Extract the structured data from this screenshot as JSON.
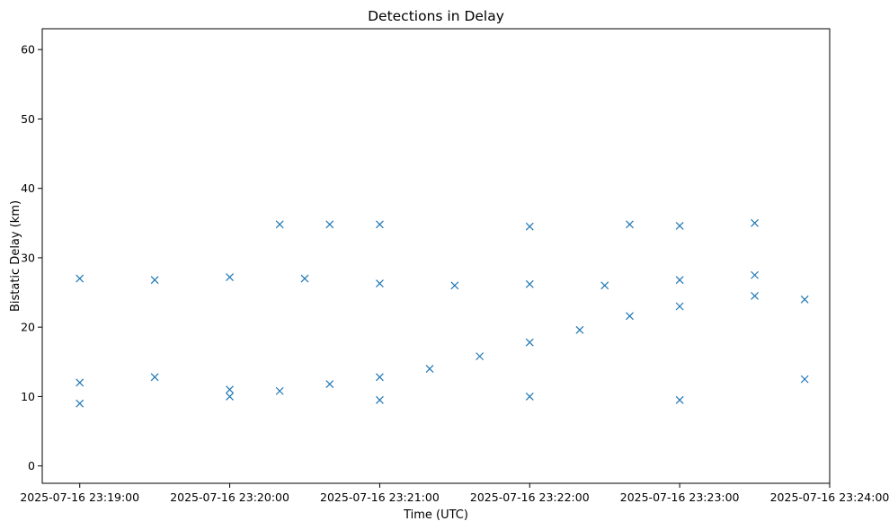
{
  "chart_data": {
    "type": "scatter",
    "title": "Detections in Delay",
    "xlabel": "Time (UTC)",
    "ylabel": "Bistatic Delay (km)",
    "marker": "x",
    "color": "#1f77b4",
    "grid": false,
    "legend": "none",
    "x_range": [
      "2025-07-16 23:18:45",
      "2025-07-16 23:24:00"
    ],
    "ylim": [
      -2.5,
      63
    ],
    "x_ticks": [
      "2025-07-16 23:19:00",
      "2025-07-16 23:20:00",
      "2025-07-16 23:21:00",
      "2025-07-16 23:22:00",
      "2025-07-16 23:23:00",
      "2025-07-16 23:24:00"
    ],
    "y_ticks": [
      0,
      10,
      20,
      30,
      40,
      50,
      60
    ],
    "series": [
      {
        "values_x": [
          "2025-07-16 23:19:00",
          "2025-07-16 23:19:30",
          "2025-07-16 23:20:00",
          "2025-07-16 23:20:20",
          "2025-07-16 23:20:40",
          "2025-07-16 23:21:00",
          "2025-07-16 23:21:20",
          "2025-07-16 23:21:40",
          "2025-07-16 23:22:00",
          "2025-07-16 23:22:20",
          "2025-07-16 23:22:40",
          "2025-07-16 23:23:00",
          "2025-07-16 23:23:30",
          "2025-07-16 23:23:50",
          "2025-07-16 23:19:00",
          "2025-07-16 23:19:30",
          "2025-07-16 23:20:00",
          "2025-07-16 23:20:30",
          "2025-07-16 23:21:00",
          "2025-07-16 23:21:30",
          "2025-07-16 23:22:00",
          "2025-07-16 23:22:30",
          "2025-07-16 23:23:00",
          "2025-07-16 23:23:30",
          "2025-07-16 23:19:00",
          "2025-07-16 23:20:00",
          "2025-07-16 23:21:00",
          "2025-07-16 23:22:00",
          "2025-07-16 23:23:00",
          "2025-07-16 23:23:50",
          "2025-07-16 23:20:20",
          "2025-07-16 23:20:40",
          "2025-07-16 23:21:00",
          "2025-07-16 23:22:00",
          "2025-07-16 23:22:40",
          "2025-07-16 23:23:00",
          "2025-07-16 23:23:30"
        ],
        "values_y": [
          12.0,
          12.8,
          11.0,
          10.8,
          11.8,
          12.8,
          14.0,
          15.8,
          17.8,
          19.6,
          21.6,
          23.0,
          24.5,
          24.0,
          27.0,
          26.8,
          27.2,
          27.0,
          26.3,
          26.0,
          26.2,
          26.0,
          26.8,
          27.5,
          9.0,
          10.0,
          9.5,
          10.0,
          9.5,
          12.5,
          34.8,
          34.8,
          34.8,
          34.5,
          34.8,
          34.6,
          35.0
        ]
      }
    ]
  }
}
